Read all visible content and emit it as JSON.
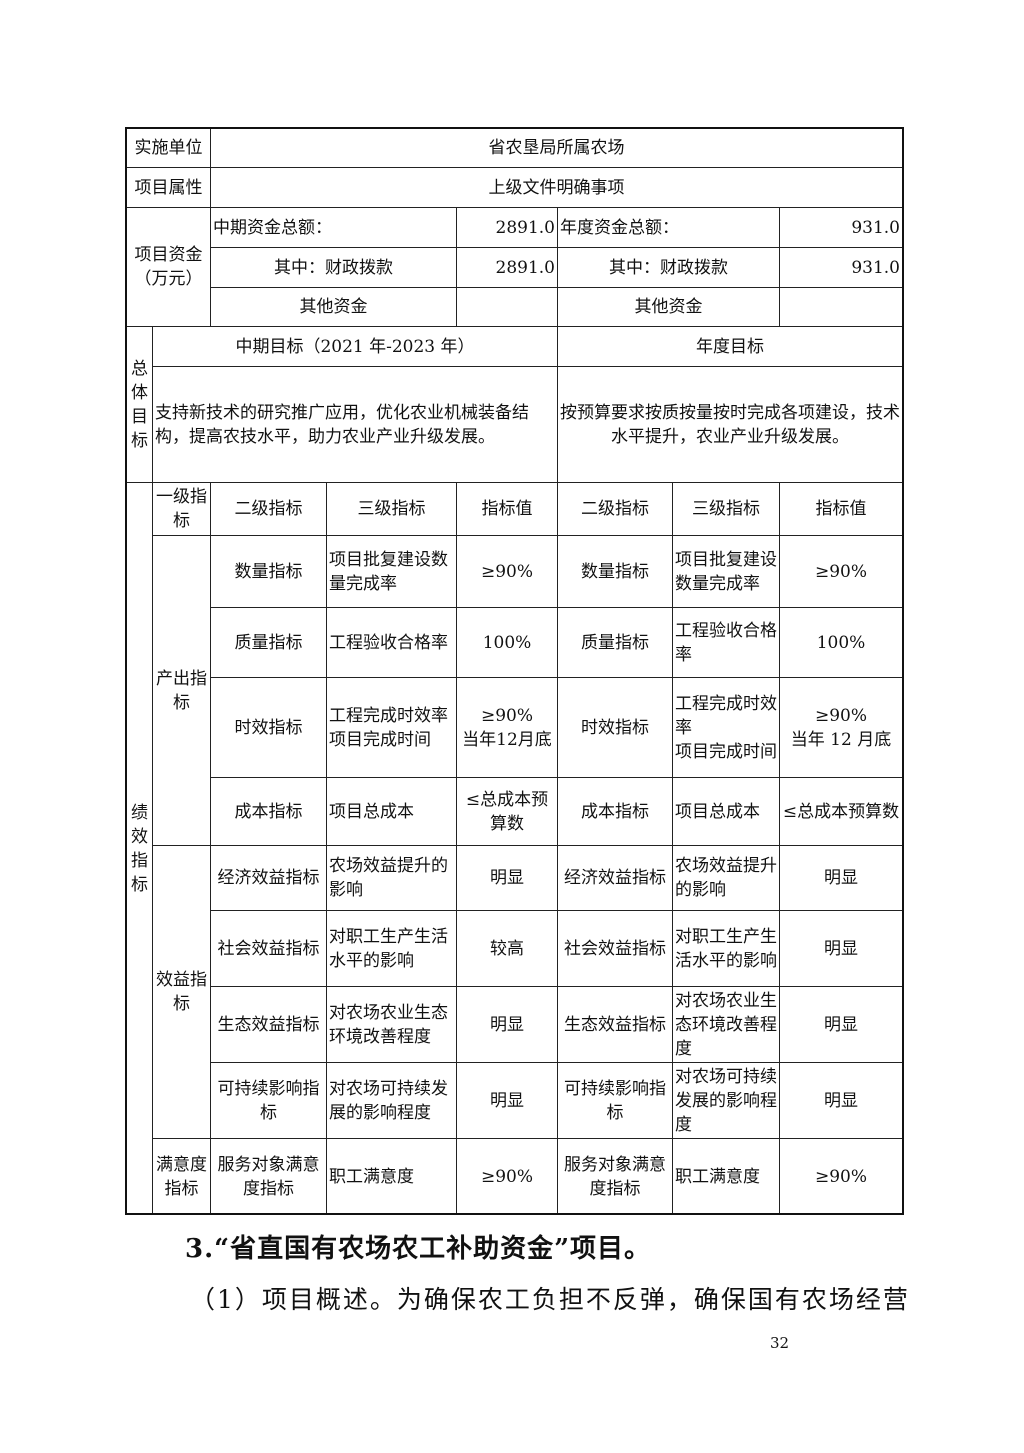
{
  "header": {
    "unit_label": "实施单位",
    "unit_value": "省农垦局所属农场",
    "attr_label": "项目属性",
    "attr_value": "上级文件明确事项",
    "funds_label": "项目资金\n（万元）",
    "mid_total_label": "中期资金总额：",
    "mid_total": "2891.0",
    "year_total_label": "年度资金总额：",
    "year_total": "931.0",
    "mid_fiscal_label": "其中：财政拨款",
    "mid_fiscal": "2891.0",
    "year_fiscal_label": "其中：财政拨款",
    "year_fiscal": "931.0",
    "mid_other_label": "其他资金",
    "mid_other_value": "",
    "year_other_label": "其他资金",
    "year_other_value": ""
  },
  "goals": {
    "side_label": "总体目标",
    "mid_title": "中期目标（2021 年-2023 年）",
    "year_title": "年度目标",
    "mid_text": "支持新技术的研究推广应用，优化农业机械装备结构，提高农技水平，助力农业产业升级发展。",
    "year_text": "按预算要求按质按量按时完成各项建设，技术水平提升，农业产业升级发展。"
  },
  "perf": {
    "side_label": "绩效指标",
    "headers": [
      "一级指标",
      "二级指标",
      "三级指标",
      "指标值",
      "二级指标",
      "三级指标",
      "指标值"
    ],
    "groups": {
      "output": "产出指标",
      "benefit": "效益指标",
      "satisfaction": "满意度指标"
    },
    "rows": [
      {
        "l2": "数量指标",
        "l3": "项目批复建设数量完成率",
        "v": "≥90%",
        "l2y": "数量指标",
        "l3y": "项目批复建设数量完成率",
        "vy": "≥90%"
      },
      {
        "l2": "质量指标",
        "l3": "工程验收合格率",
        "v": "100%",
        "l2y": "质量指标",
        "l3y": "工程验收合格率",
        "vy": "100%"
      },
      {
        "l2": "时效指标",
        "l3": "工程完成时效率\n项目完成时间",
        "v": "≥90%\n当年12月底",
        "l2y": "时效指标",
        "l3y": "工程完成时效率\n项目完成时间",
        "vy": "≥90%\n当年 12 月底"
      },
      {
        "l2": "成本指标",
        "l3": "项目总成本",
        "v": "≤总成本预算数",
        "l2y": "成本指标",
        "l3y": "项目总成本",
        "vy": "≤总成本预算数"
      },
      {
        "l2": "经济效益指标",
        "l3": "农场效益提升的影响",
        "v": "明显",
        "l2y": "经济效益指标",
        "l3y": "农场效益提升的影响",
        "vy": "明显"
      },
      {
        "l2": "社会效益指标",
        "l3": "对职工生产生活水平的影响",
        "v": "较高",
        "l2y": "社会效益指标",
        "l3y": "对职工生产生活水平的影响",
        "vy": "明显"
      },
      {
        "l2": "生态效益指标",
        "l3": "对农场农业生态环境改善程度",
        "v": "明显",
        "l2y": "生态效益指标",
        "l3y": "对农场农业生态环境改善程度",
        "vy": "明显"
      },
      {
        "l2": "可持续影响指标",
        "l3": "对农场可持续发展的影响程度",
        "v": "明显",
        "l2y": "可持续影响指标",
        "l3y": "对农场可持续发展的影响程度",
        "vy": "明显"
      },
      {
        "l2": "服务对象满意度指标",
        "l3": "职工满意度",
        "v": "≥90%",
        "l2y": "服务对象满意度指标",
        "l3y": "职工满意度",
        "vy": "≥90%"
      }
    ]
  },
  "body": {
    "heading": "3.“省直国有农场农工补助资金”项目。",
    "paragraph": "（1）项目概述。为确保农工负担不反弹，确保国有农场经营",
    "page_number": "32"
  }
}
